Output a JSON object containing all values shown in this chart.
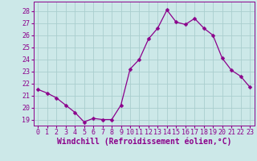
{
  "x": [
    0,
    1,
    2,
    3,
    4,
    5,
    6,
    7,
    8,
    9,
    10,
    11,
    12,
    13,
    14,
    15,
    16,
    17,
    18,
    19,
    20,
    21,
    22,
    23
  ],
  "y": [
    21.5,
    21.2,
    20.8,
    20.2,
    19.6,
    18.8,
    19.1,
    19.0,
    19.0,
    20.2,
    23.2,
    24.0,
    25.7,
    26.6,
    28.1,
    27.1,
    26.9,
    27.4,
    26.6,
    26.0,
    24.1,
    23.1,
    22.6,
    21.7
  ],
  "line_color": "#8B008B",
  "marker": "D",
  "marker_size": 2.5,
  "bg_color": "#cce8e8",
  "grid_color": "#aacece",
  "ylim": [
    18.5,
    28.8
  ],
  "yticks": [
    19,
    20,
    21,
    22,
    23,
    24,
    25,
    26,
    27,
    28
  ],
  "xlim": [
    -0.5,
    23.5
  ],
  "xlabel": "Windchill (Refroidissement éolien,°C)",
  "xlabel_color": "#8B008B",
  "tick_color": "#8B008B",
  "axis_label_fontsize": 7.0,
  "tick_fontsize": 6.0
}
